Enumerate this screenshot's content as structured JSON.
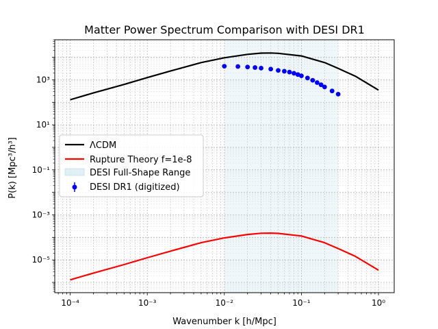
{
  "chart_data": {
    "type": "line",
    "title": "Matter Power Spectrum Comparison with DESI DR1",
    "xlabel": "Wavenumber k [h/Mpc]",
    "ylabel": "P(k) [Mpc³/h³]",
    "xscale": "log",
    "yscale": "log",
    "xlim": [
      6.3e-05,
      1.6
    ],
    "ylim": [
      3.5e-07,
      60000
    ],
    "grid": true,
    "legend_position": "center-left",
    "x_ticks": [
      {
        "value": 0.0001,
        "label": "10⁻⁴"
      },
      {
        "value": 0.001,
        "label": "10⁻³"
      },
      {
        "value": 0.01,
        "label": "10⁻²"
      },
      {
        "value": 0.1,
        "label": "10⁻¹"
      },
      {
        "value": 1,
        "label": "10⁰"
      }
    ],
    "y_ticks": [
      {
        "value": 1e-05,
        "label": "10⁻⁵"
      },
      {
        "value": 0.001,
        "label": "10⁻³"
      },
      {
        "value": 0.1,
        "label": "10⁻¹"
      },
      {
        "value": 10,
        "label": "10¹"
      },
      {
        "value": 1000,
        "label": "10³"
      }
    ],
    "shaded_region": {
      "name": "DESI Full-Shape Range",
      "x_range": [
        0.01,
        0.3
      ],
      "color": "#add8e6"
    },
    "series": [
      {
        "name": "ΛCDM",
        "kind": "line",
        "color": "#000000",
        "x": [
          0.0001,
          0.0002,
          0.0005,
          0.001,
          0.002,
          0.005,
          0.01,
          0.02,
          0.03,
          0.04,
          0.05,
          0.1,
          0.2,
          0.3,
          0.5,
          1.0
        ],
        "y": [
          130,
          260,
          620,
          1250,
          2450,
          5800,
          9500,
          13500,
          15300,
          15500,
          15000,
          11500,
          5800,
          3200,
          1450,
          350
        ]
      },
      {
        "name": "Rupture Theory f=1e-8",
        "kind": "line",
        "color": "#ff0000",
        "x": [
          0.0001,
          0.0002,
          0.0005,
          0.001,
          0.002,
          0.005,
          0.01,
          0.02,
          0.03,
          0.04,
          0.05,
          0.1,
          0.2,
          0.3,
          0.5,
          1.0
        ],
        "y": [
          1.3e-06,
          2.6e-06,
          6.2e-06,
          1.25e-05,
          2.45e-05,
          5.8e-05,
          9.5e-05,
          0.000135,
          0.000153,
          0.000155,
          0.00015,
          0.000115,
          5.8e-05,
          3.2e-05,
          1.45e-05,
          3.5e-06
        ]
      },
      {
        "name": "DESI DR1 (digitized)",
        "kind": "scatter",
        "color": "#0000ff",
        "x": [
          0.01,
          0.015,
          0.02,
          0.025,
          0.03,
          0.04,
          0.05,
          0.06,
          0.07,
          0.08,
          0.09,
          0.1,
          0.12,
          0.14,
          0.16,
          0.18,
          0.2,
          0.25,
          0.3
        ],
        "y": [
          4000,
          3900,
          3700,
          3500,
          3300,
          3000,
          2600,
          2400,
          2200,
          1950,
          1700,
          1500,
          1200,
          950,
          750,
          600,
          480,
          320,
          230
        ]
      }
    ]
  }
}
